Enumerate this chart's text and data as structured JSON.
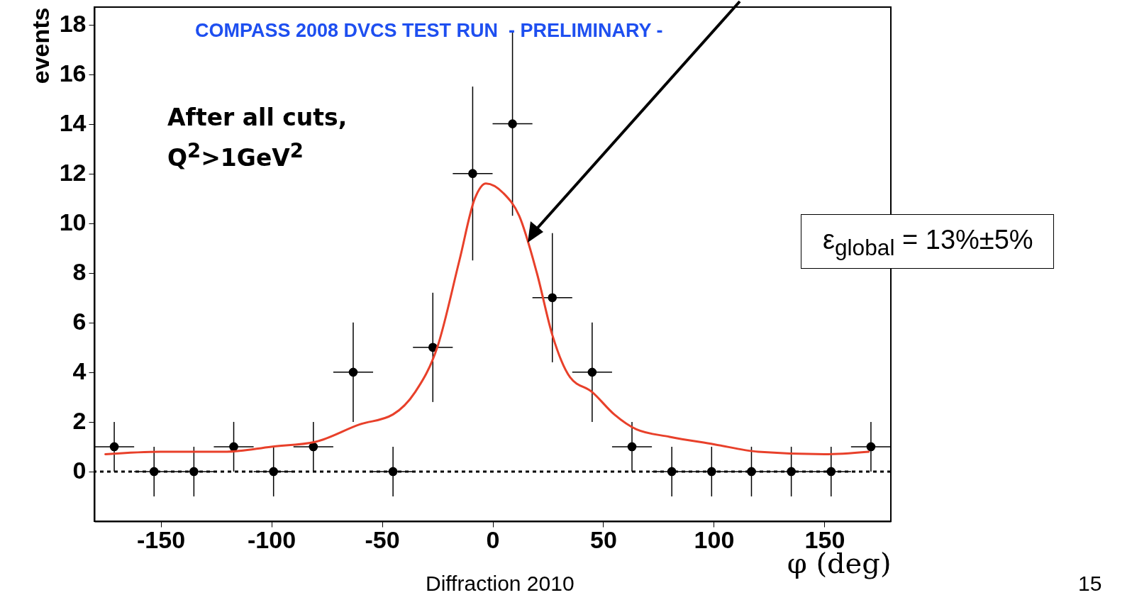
{
  "chart_data": {
    "type": "scatter",
    "title": "COMPASS 2008 DVCS TEST RUN  - PRELIMINARY -",
    "xlabel": "φ (deg)",
    "ylabel": "events",
    "x": [
      -171,
      -153,
      -135,
      -117,
      -99,
      -81,
      -63,
      -45,
      -27,
      -9,
      9,
      27,
      45,
      63,
      81,
      99,
      117,
      135,
      153,
      171
    ],
    "series": [
      {
        "color": "#000000",
        "marker": "circle",
        "values": [
          1,
          0,
          0,
          1,
          0,
          1,
          4,
          0,
          5,
          12,
          14,
          7,
          4,
          1,
          0,
          0,
          0,
          0,
          0,
          1
        ],
        "errors": [
          1,
          1,
          1,
          1,
          1,
          1,
          2,
          1,
          2.2,
          3.5,
          3.7,
          2.6,
          2,
          1,
          1,
          1,
          1,
          1,
          1,
          1
        ],
        "xerrors": [
          9,
          9,
          9,
          9,
          9,
          9,
          9,
          9,
          9,
          9,
          9,
          9,
          9,
          9,
          9,
          9,
          9,
          9,
          9,
          9
        ]
      },
      {
        "type": "line",
        "color": "#e8402a",
        "line_style": "solid",
        "x": [
          -175,
          -150,
          -120,
          -100,
          -80,
          -60,
          -45,
          -35,
          -25,
          -15,
          -8,
          -3,
          5,
          12,
          20,
          27,
          35,
          45,
          55,
          65,
          80,
          100,
          120,
          150,
          170
        ],
        "values": [
          0.7,
          0.8,
          0.8,
          1.0,
          1.2,
          1.9,
          2.3,
          3.2,
          5.0,
          8.5,
          11.0,
          11.6,
          11.2,
          10.3,
          8.0,
          5.5,
          3.8,
          3.2,
          2.3,
          1.7,
          1.4,
          1.1,
          0.8,
          0.7,
          0.8
        ]
      }
    ],
    "xlim": [
      -180,
      180
    ],
    "xticks": [
      -150,
      -100,
      -50,
      0,
      50,
      100,
      150
    ],
    "ylim": [
      -2,
      18.7
    ],
    "yticks": [
      0,
      2,
      4,
      6,
      8,
      10,
      12,
      14,
      16,
      18
    ],
    "ref_lines": [
      {
        "axis": "y",
        "value": 0,
        "color": "#000000",
        "line_style": "dotted"
      }
    ],
    "annotations": [
      "After all cuts,\nQ$^{2}$>1GeV$^{2}$",
      "ε$_{global}$ = 13%±5%",
      "Diffraction 2010",
      "15"
    ]
  }
}
